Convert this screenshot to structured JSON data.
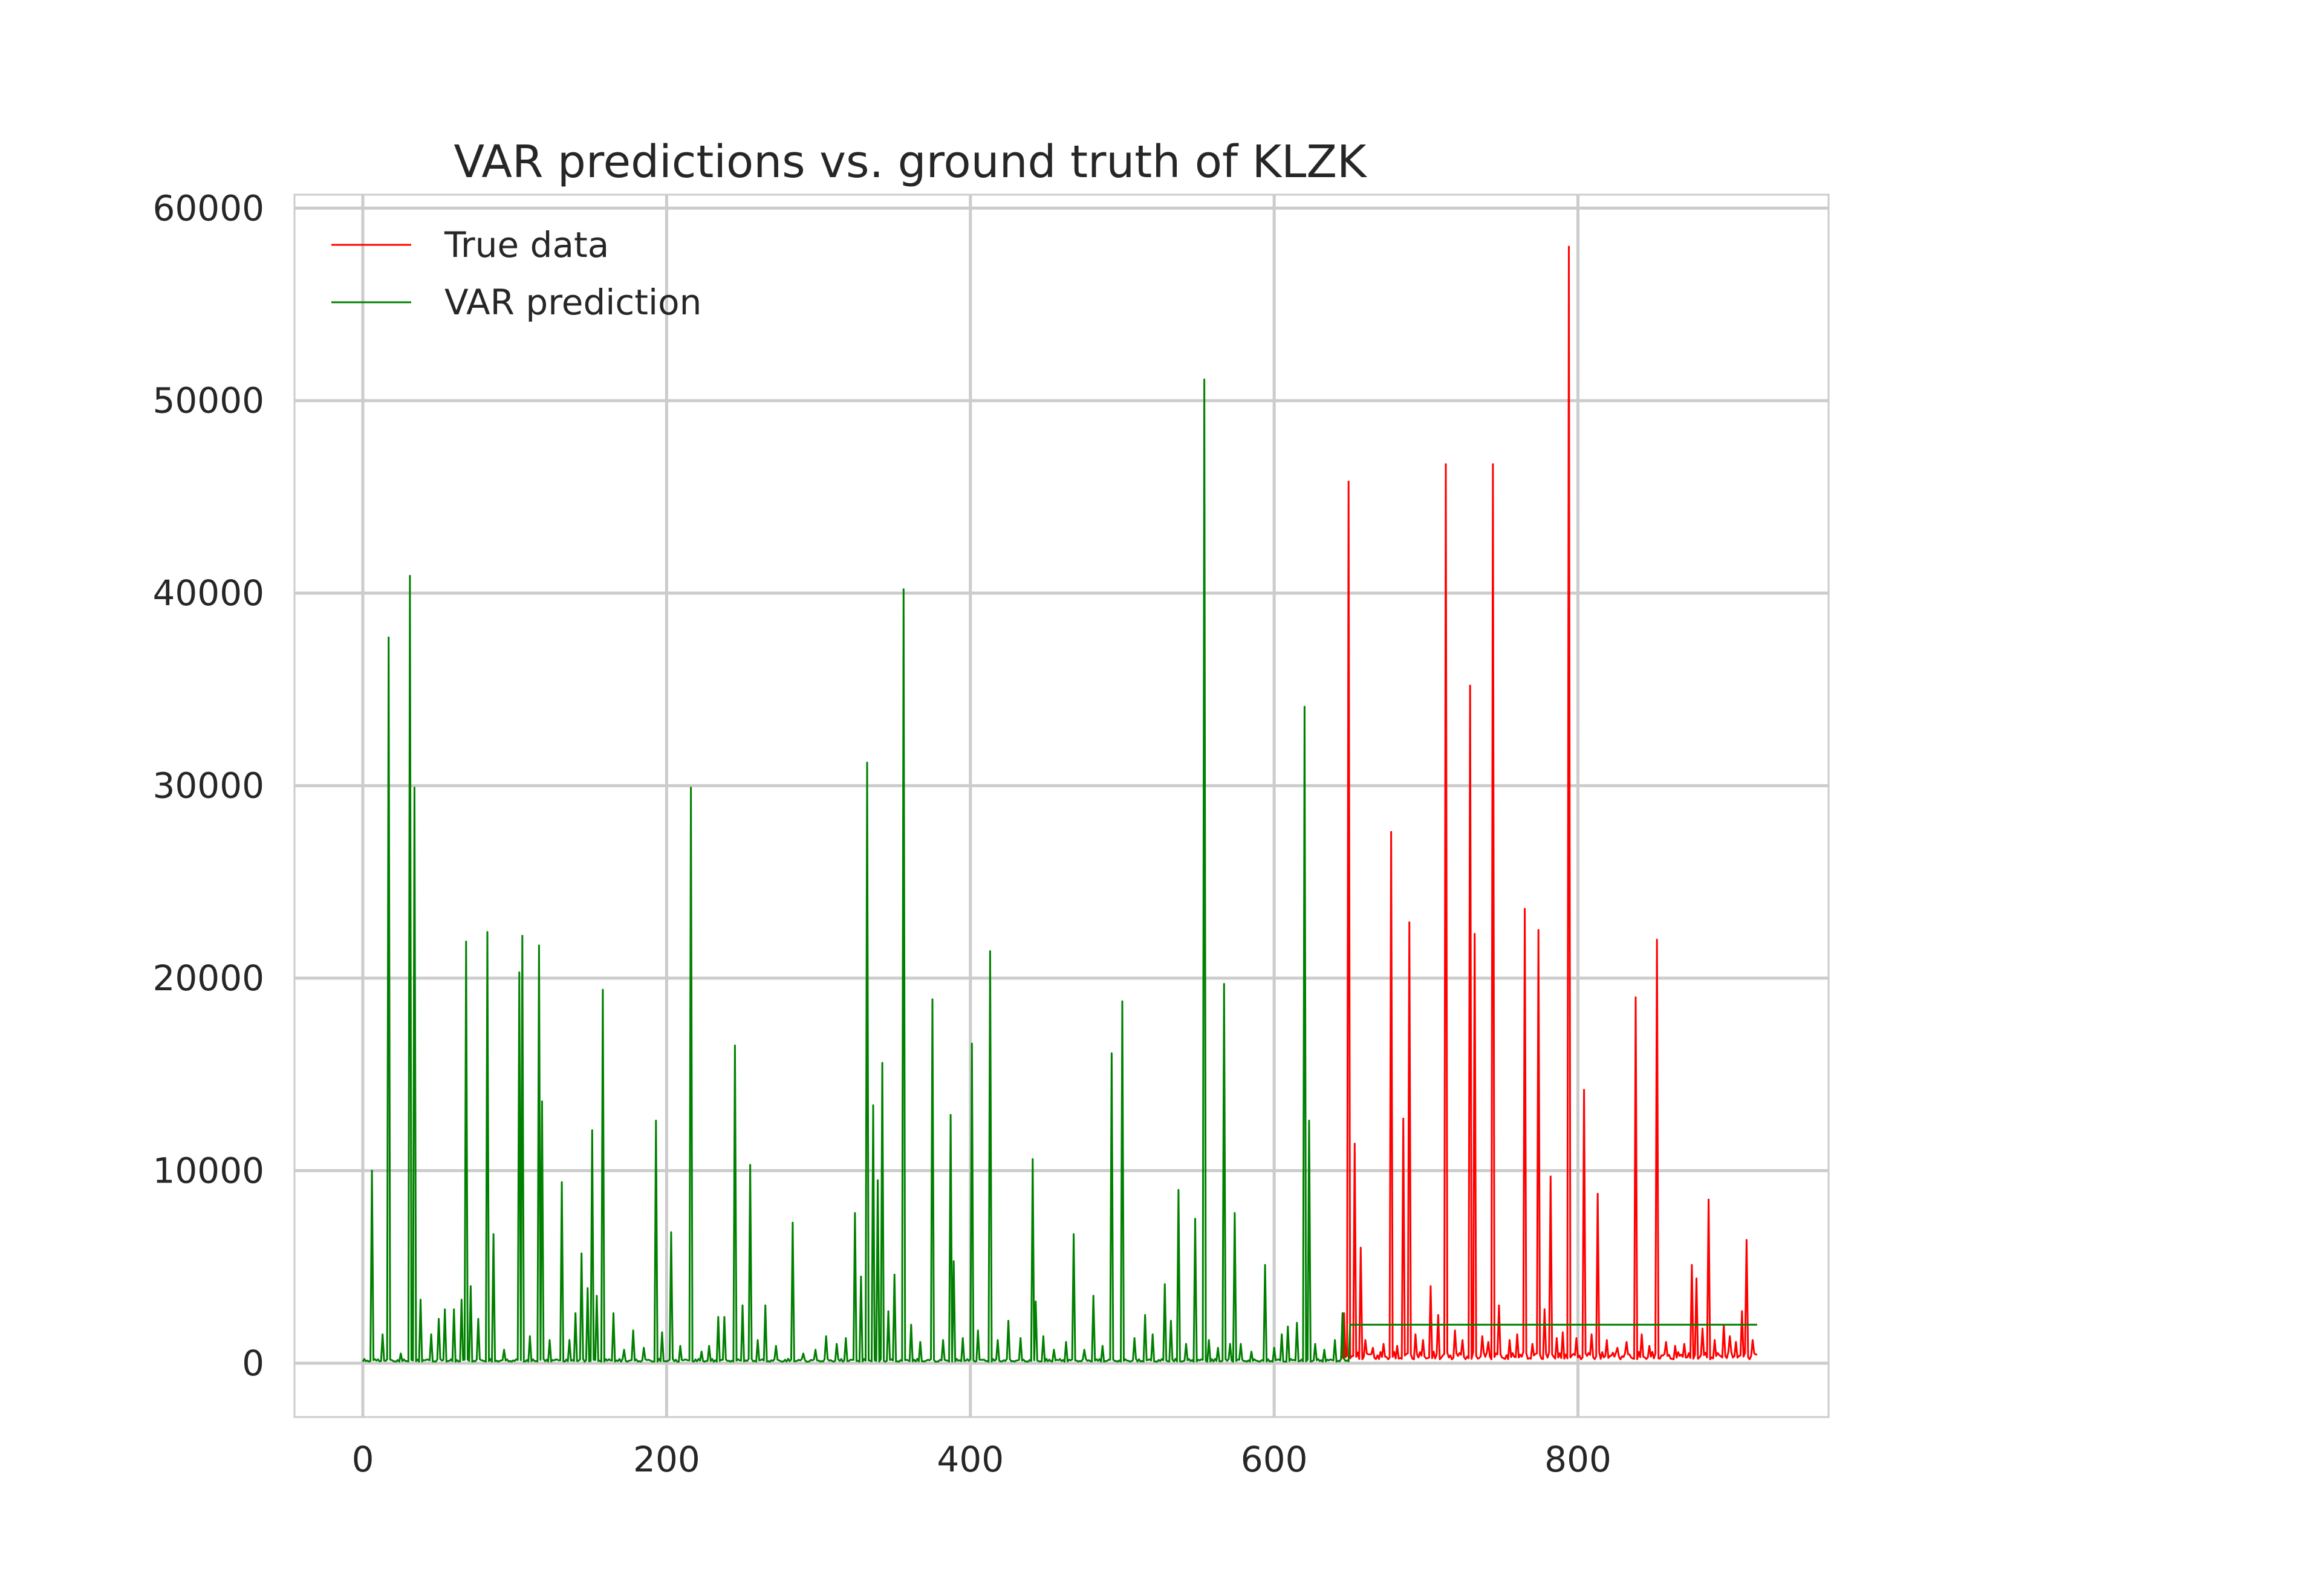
{
  "chart_data": {
    "type": "line",
    "title": "VAR predictions vs. ground truth of KLZK",
    "xlabel": "",
    "ylabel": "",
    "xlim": [
      -45,
      965
    ],
    "ylim": [
      -2800,
      60700
    ],
    "x_ticks": [
      0,
      200,
      400,
      600,
      800
    ],
    "y_ticks": [
      0,
      10000,
      20000,
      30000,
      40000,
      50000,
      60000
    ],
    "x_tick_labels": [
      "0",
      "200",
      "400",
      "600",
      "800"
    ],
    "y_tick_labels": [
      "0",
      "10000",
      "20000",
      "30000",
      "40000",
      "50000",
      "60000"
    ],
    "grid": true,
    "legend_position": "upper-left",
    "legend": [
      "True data",
      "VAR prediction"
    ],
    "series": [
      {
        "name": "True data",
        "color": "#ff0000",
        "baseline": 400,
        "x_start": 645,
        "x_end": 918,
        "peaks": [
          [
            646,
            2600
          ],
          [
            649,
            45800
          ],
          [
            653,
            11400
          ],
          [
            657,
            6000
          ],
          [
            660,
            1200
          ],
          [
            665,
            800
          ],
          [
            672,
            1000
          ],
          [
            677,
            27600
          ],
          [
            681,
            900
          ],
          [
            685,
            12700
          ],
          [
            689,
            22900
          ],
          [
            693,
            1500
          ],
          [
            698,
            1200
          ],
          [
            703,
            4000
          ],
          [
            708,
            2500
          ],
          [
            713,
            46700
          ],
          [
            719,
            1700
          ],
          [
            724,
            1200
          ],
          [
            729,
            35200
          ],
          [
            732,
            22300
          ],
          [
            737,
            1400
          ],
          [
            741,
            1100
          ],
          [
            744,
            46700
          ],
          [
            748,
            3000
          ],
          [
            755,
            1200
          ],
          [
            760,
            1500
          ],
          [
            765,
            23600
          ],
          [
            770,
            1000
          ],
          [
            774,
            22500
          ],
          [
            778,
            2800
          ],
          [
            782,
            9700
          ],
          [
            786,
            1300
          ],
          [
            790,
            1600
          ],
          [
            794,
            58000
          ],
          [
            799,
            1300
          ],
          [
            804,
            14200
          ],
          [
            809,
            1500
          ],
          [
            813,
            8800
          ],
          [
            819,
            1200
          ],
          [
            826,
            800
          ],
          [
            832,
            1100
          ],
          [
            838,
            19000
          ],
          [
            842,
            1500
          ],
          [
            847,
            900
          ],
          [
            852,
            22000
          ],
          [
            858,
            1100
          ],
          [
            864,
            900
          ],
          [
            870,
            1000
          ],
          [
            875,
            5100
          ],
          [
            878,
            4400
          ],
          [
            882,
            1800
          ],
          [
            886,
            8500
          ],
          [
            890,
            1200
          ],
          [
            896,
            2000
          ],
          [
            900,
            1400
          ],
          [
            904,
            1100
          ],
          [
            908,
            2700
          ],
          [
            911,
            6400
          ],
          [
            915,
            1200
          ]
        ]
      },
      {
        "name": "VAR prediction",
        "color": "#008000",
        "baseline": 150,
        "x_start": 0,
        "x_end": 918,
        "forecast_start": 650,
        "forecast_value": 2000,
        "peaks": [
          [
            6,
            10000
          ],
          [
            13,
            1500
          ],
          [
            17,
            37700
          ],
          [
            25,
            500
          ],
          [
            31,
            40900
          ],
          [
            34,
            29900
          ],
          [
            38,
            3300
          ],
          [
            45,
            1500
          ],
          [
            50,
            2300
          ],
          [
            54,
            2800
          ],
          [
            60,
            2800
          ],
          [
            65,
            3300
          ],
          [
            68,
            21900
          ],
          [
            71,
            4000
          ],
          [
            76,
            2300
          ],
          [
            82,
            22400
          ],
          [
            86,
            6700
          ],
          [
            93,
            700
          ],
          [
            103,
            20300
          ],
          [
            105,
            22200
          ],
          [
            110,
            1400
          ],
          [
            116,
            21700
          ],
          [
            118,
            13600
          ],
          [
            123,
            1200
          ],
          [
            131,
            9400
          ],
          [
            136,
            1200
          ],
          [
            140,
            2600
          ],
          [
            144,
            5700
          ],
          [
            148,
            3900
          ],
          [
            151,
            12100
          ],
          [
            154,
            3500
          ],
          [
            158,
            19400
          ],
          [
            165,
            2600
          ],
          [
            172,
            700
          ],
          [
            178,
            1700
          ],
          [
            185,
            800
          ],
          [
            193,
            12600
          ],
          [
            197,
            1600
          ],
          [
            203,
            6800
          ],
          [
            209,
            900
          ],
          [
            216,
            29900
          ],
          [
            223,
            600
          ],
          [
            228,
            900
          ],
          [
            234,
            2400
          ],
          [
            238,
            2400
          ],
          [
            245,
            16500
          ],
          [
            250,
            3000
          ],
          [
            255,
            10300
          ],
          [
            260,
            1200
          ],
          [
            265,
            3000
          ],
          [
            272,
            900
          ],
          [
            283,
            7300
          ],
          [
            290,
            500
          ],
          [
            298,
            700
          ],
          [
            305,
            1400
          ],
          [
            312,
            1000
          ],
          [
            318,
            1300
          ],
          [
            324,
            7800
          ],
          [
            328,
            4500
          ],
          [
            332,
            31200
          ],
          [
            336,
            13400
          ],
          [
            339,
            9500
          ],
          [
            342,
            15600
          ],
          [
            346,
            2700
          ],
          [
            350,
            4600
          ],
          [
            356,
            40200
          ],
          [
            361,
            2000
          ],
          [
            367,
            1100
          ],
          [
            375,
            18900
          ],
          [
            382,
            1200
          ],
          [
            387,
            12900
          ],
          [
            389,
            5300
          ],
          [
            395,
            1300
          ],
          [
            401,
            16600
          ],
          [
            405,
            1700
          ],
          [
            413,
            21400
          ],
          [
            418,
            1200
          ],
          [
            425,
            2200
          ],
          [
            433,
            1300
          ],
          [
            441,
            10600
          ],
          [
            443,
            3200
          ],
          [
            448,
            1400
          ],
          [
            455,
            700
          ],
          [
            463,
            1100
          ],
          [
            468,
            6700
          ],
          [
            475,
            700
          ],
          [
            481,
            3500
          ],
          [
            487,
            900
          ],
          [
            493,
            16100
          ],
          [
            500,
            18800
          ],
          [
            508,
            1300
          ],
          [
            515,
            2500
          ],
          [
            520,
            1500
          ],
          [
            528,
            4100
          ],
          [
            532,
            2200
          ],
          [
            537,
            9000
          ],
          [
            542,
            1000
          ],
          [
            548,
            7500
          ],
          [
            554,
            51100
          ],
          [
            557,
            1200
          ],
          [
            563,
            800
          ],
          [
            567,
            19700
          ],
          [
            571,
            1000
          ],
          [
            574,
            7800
          ],
          [
            578,
            1000
          ],
          [
            585,
            600
          ],
          [
            594,
            5100
          ],
          [
            600,
            800
          ],
          [
            605,
            1500
          ],
          [
            609,
            1900
          ],
          [
            615,
            2100
          ],
          [
            620,
            34100
          ],
          [
            623,
            12600
          ],
          [
            627,
            1000
          ],
          [
            633,
            700
          ],
          [
            640,
            1200
          ],
          [
            645,
            2600
          ]
        ]
      }
    ]
  }
}
